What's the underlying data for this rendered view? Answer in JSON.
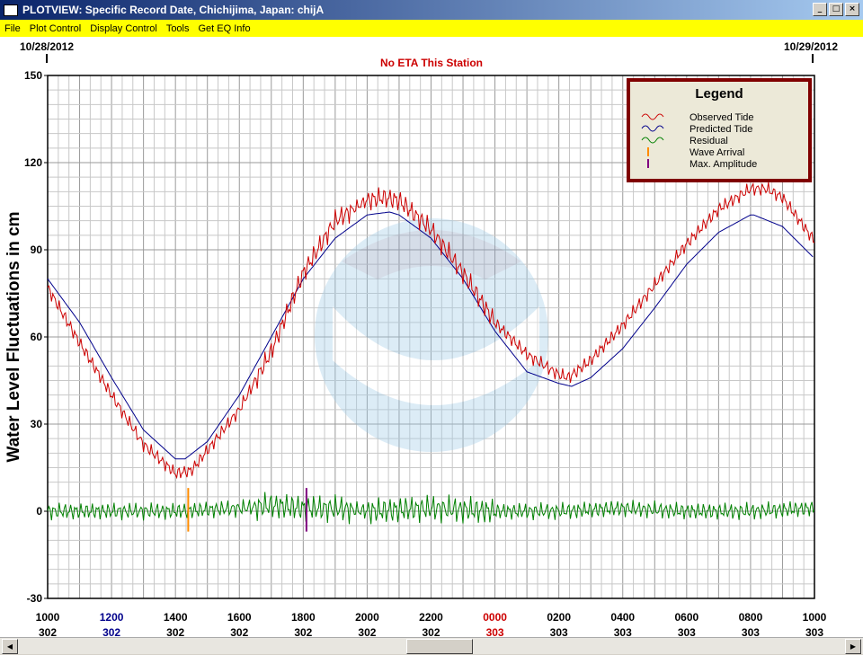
{
  "window": {
    "title": "PLOTVIEW: Specific Record Date, Chichijima, Japan: chijA"
  },
  "menu": [
    "File",
    "Plot Control",
    "Display Control",
    "Tools",
    "Get EQ Info"
  ],
  "colors": {
    "observed": "#cc0000",
    "predicted": "#00008b",
    "residual": "#008000",
    "wave_arrival": "#ff8c00",
    "max_amplitude": "#800080",
    "frame": "#800000"
  },
  "chart_data": {
    "type": "line",
    "title": "No ETA This Station",
    "ylabel": "Water Level Fluctuations in cm",
    "date_left": "10/28/2012",
    "date_right": "10/29/2012",
    "ylim": [
      -30,
      150
    ],
    "yticks": [
      "150",
      "120",
      "90",
      "60",
      "30",
      "0",
      "-30"
    ],
    "xlim_hours": [
      10,
      34
    ],
    "xticks": [
      {
        "time": "1000",
        "day": "302",
        "color": "black"
      },
      {
        "time": "1200",
        "day": "302",
        "color": "navy"
      },
      {
        "time": "1400",
        "day": "302",
        "color": "black"
      },
      {
        "time": "1600",
        "day": "302",
        "color": "black"
      },
      {
        "time": "1800",
        "day": "302",
        "color": "black"
      },
      {
        "time": "2000",
        "day": "302",
        "color": "black"
      },
      {
        "time": "2200",
        "day": "302",
        "color": "black"
      },
      {
        "time": "0000",
        "day": "303",
        "color": "red"
      },
      {
        "time": "0200",
        "day": "303",
        "color": "black"
      },
      {
        "time": "0400",
        "day": "303",
        "color": "black"
      },
      {
        "time": "0600",
        "day": "303",
        "color": "black"
      },
      {
        "time": "0800",
        "day": "303",
        "color": "black"
      },
      {
        "time": "1000",
        "day": "303",
        "color": "black"
      }
    ],
    "legend": {
      "title": "Legend",
      "placement": "top-right",
      "entries": [
        "Observed Tide",
        "Predicted Tide",
        "Residual",
        "Wave Arrival",
        "Max. Amplitude"
      ]
    },
    "series": [
      {
        "name": "Predicted Tide",
        "x": [
          10,
          11,
          12,
          13,
          14,
          14.3,
          15,
          16,
          17,
          18,
          19,
          20,
          20.7,
          21,
          22,
          23,
          24,
          25,
          26,
          26.4,
          27,
          28,
          29,
          30,
          31,
          32,
          32.1,
          33,
          34
        ],
        "y": [
          80,
          65,
          46,
          28,
          18,
          18,
          24,
          40,
          60,
          80,
          94,
          102,
          103,
          102,
          94,
          80,
          62,
          48,
          44,
          43,
          46,
          56,
          70,
          85,
          96,
          102,
          102,
          98,
          87
        ]
      },
      {
        "name": "Observed Tide",
        "x": [
          10,
          11,
          12,
          13,
          14,
          14.5,
          15,
          16,
          17,
          18,
          19,
          20,
          20.5,
          21,
          22,
          23,
          24,
          25,
          26,
          26.3,
          27,
          28,
          29,
          30,
          31,
          32,
          32.5,
          33,
          34
        ],
        "y": [
          77,
          58,
          40,
          23,
          13,
          14,
          21,
          35,
          55,
          82,
          100,
          107,
          108,
          107,
          97,
          82,
          65,
          54,
          47,
          46,
          52,
          64,
          78,
          92,
          104,
          111,
          111,
          108,
          93
        ]
      },
      {
        "name": "Residual",
        "x": [
          10,
          14,
          16,
          17,
          18,
          19,
          20,
          22,
          24,
          26,
          28,
          30,
          32,
          34
        ],
        "y": [
          0,
          0,
          1,
          2,
          1,
          1,
          0,
          1,
          0,
          0,
          1,
          0,
          0,
          1
        ]
      }
    ],
    "wave_arrival_hour": 14.4,
    "max_amplitude_hour": 18.1
  }
}
